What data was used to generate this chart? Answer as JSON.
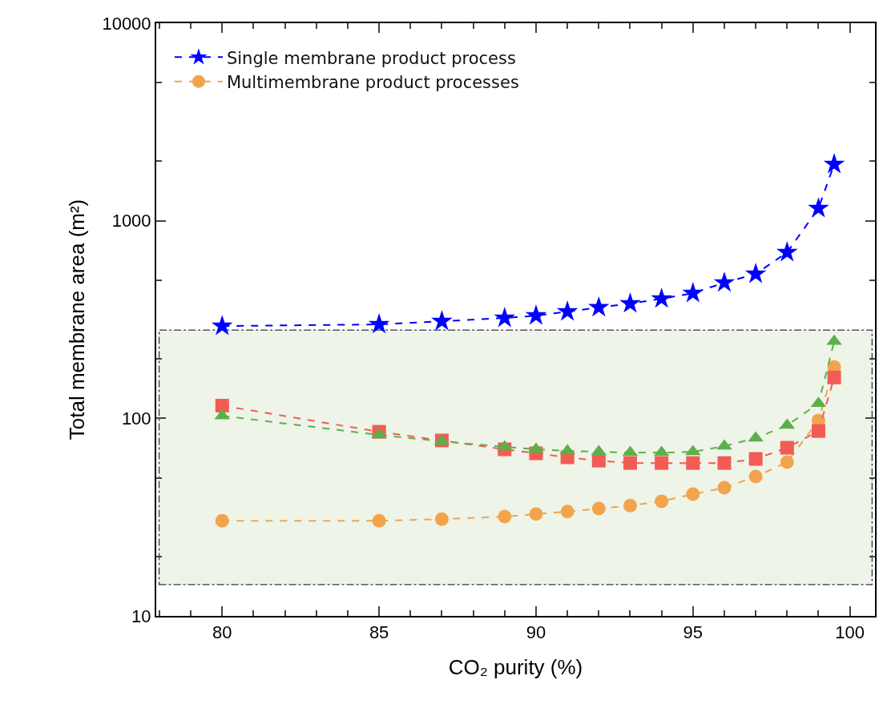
{
  "chart_data": {
    "type": "line",
    "xlabel": "CO₂ purity (%)",
    "ylabel": "Total membrane area (m²)",
    "x": [
      80,
      85,
      87,
      89,
      90,
      91,
      92,
      93,
      94,
      95,
      96,
      97,
      98,
      99,
      99.5
    ],
    "series": [
      {
        "name": "Single membrane product process",
        "color": "#0000ff",
        "marker": "star",
        "line_style": "dashed",
        "values": [
          293,
          299,
          310,
          322,
          331,
          347,
          364,
          381,
          403,
          430,
          486,
          538,
          692,
          1156,
          1932
        ]
      },
      {
        "name": "Multimembrane product processes",
        "color": "#f2a44d",
        "marker": "circle",
        "line_style": "dashed",
        "values": [
          30.3,
          30.3,
          30.9,
          31.8,
          32.8,
          33.7,
          34.9,
          36.2,
          38.0,
          41.3,
          44.5,
          50.7,
          60.0,
          97.5,
          182
        ]
      },
      {
        "color": "#f25c54",
        "marker": "square",
        "line_style": "dashed",
        "values": [
          116,
          85.5,
          77.3,
          69.7,
          66.5,
          63.5,
          61.1,
          59.4,
          59.4,
          59.4,
          59.4,
          62.3,
          71.0,
          86.3,
          161
        ]
      },
      {
        "color": "#5cb04c",
        "marker": "triangle",
        "line_style": "dashed",
        "values": [
          103,
          82.4,
          76.5,
          71.7,
          69.7,
          68.4,
          67.7,
          67.1,
          67.1,
          67.7,
          72.3,
          79.4,
          92.2,
          119,
          245
        ]
      }
    ],
    "bands": [
      {
        "axis": "y",
        "from": 14.4,
        "to": 280,
        "color": "#eef4e8"
      }
    ],
    "log": "y",
    "grid": false,
    "legend": "top left",
    "xlim": [
      77.9,
      100.8
    ],
    "xticks": [
      80,
      85,
      90,
      95,
      100
    ],
    "ylim": [
      10,
      10000
    ],
    "yticks": [
      10,
      100,
      1000,
      10000
    ]
  }
}
